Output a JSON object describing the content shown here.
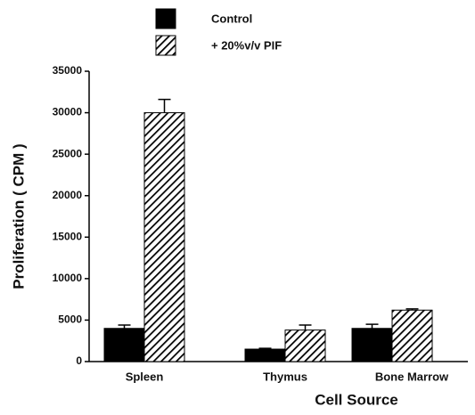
{
  "chart_data": {
    "type": "bar",
    "x_label": "Cell Source",
    "y_label": "Proliferation ( CPM )",
    "categories": [
      "Spleen",
      "Thymus",
      "Bone Marrow"
    ],
    "series": [
      {
        "name": "Control",
        "color": "#000000",
        "pattern": "solid",
        "values": [
          4000,
          1500,
          4000
        ],
        "errors": [
          400,
          100,
          500
        ]
      },
      {
        "name": "+ 20%v/v PIF",
        "color": "#000000",
        "pattern": "hatch",
        "values": [
          30000,
          3800,
          6200
        ],
        "errors": [
          1600,
          600,
          150
        ]
      }
    ],
    "ylim": [
      0,
      35000
    ],
    "yticks": [
      0,
      5000,
      10000,
      15000,
      20000,
      25000,
      30000,
      35000
    ],
    "grid": false
  }
}
